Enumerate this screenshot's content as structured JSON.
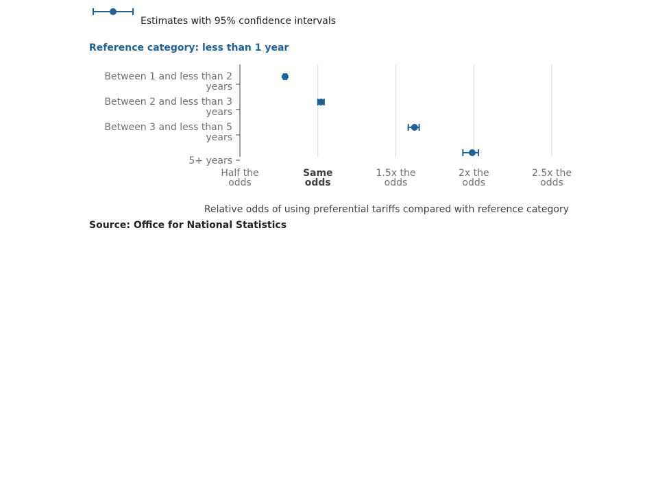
{
  "legend": {
    "label": "Estimates with 95% confidence intervals"
  },
  "reference_title": "Reference category: less than 1 year",
  "source": "Source: Office for National Statistics",
  "colors": {
    "marker": "#206095",
    "grid": "#d9d9d9",
    "axis": "#414042"
  },
  "chart_data": {
    "type": "scatter",
    "orientation": "horizontal",
    "title": "Reference category: less than 1 year",
    "xlabel": "Relative odds of using preferential tariffs compared with reference category",
    "ylabel": "",
    "categories": [
      [
        "Between 1 and less than 2",
        "years"
      ],
      [
        "Between 2 and less than 3",
        "years"
      ],
      [
        "Between 3 and less than 5",
        "years"
      ],
      [
        "5+ years"
      ]
    ],
    "estimates": [
      0.79,
      1.02,
      1.62,
      1.99
    ],
    "lower": [
      0.78,
      1.0,
      1.58,
      1.93
    ],
    "upper": [
      0.8,
      1.04,
      1.65,
      2.03
    ],
    "xlim": [
      0.5,
      2.5
    ],
    "xticks": [
      {
        "value": 0.5,
        "lines": [
          "Half the",
          "odds"
        ],
        "bold": false
      },
      {
        "value": 1.0,
        "lines": [
          "Same",
          "odds"
        ],
        "bold": true
      },
      {
        "value": 1.5,
        "lines": [
          "1.5x the",
          "odds"
        ],
        "bold": false
      },
      {
        "value": 2.0,
        "lines": [
          "2x the",
          "odds"
        ],
        "bold": false
      },
      {
        "value": 2.5,
        "lines": [
          "2.5x the",
          "odds"
        ],
        "bold": false
      }
    ],
    "grid": true,
    "legend_position": "top-left"
  }
}
